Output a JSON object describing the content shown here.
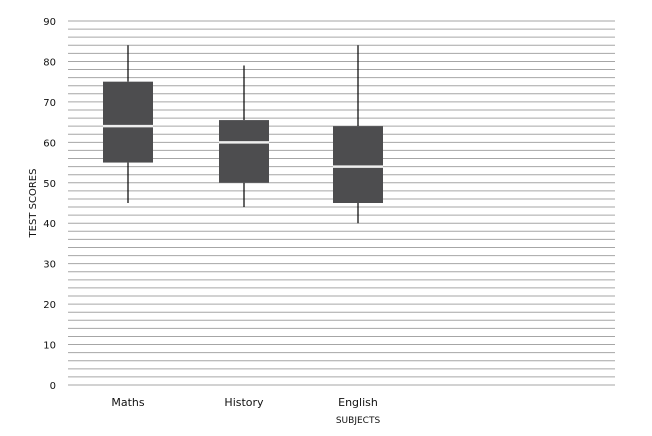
{
  "chart_data": {
    "type": "boxplot",
    "title": "",
    "xlabel": "SUBJECTS",
    "ylabel": "TEST SCORES",
    "ylim": [
      0,
      90
    ],
    "yticks": [
      0,
      10,
      20,
      30,
      40,
      50,
      60,
      70,
      80,
      90
    ],
    "grid": true,
    "grid_step": 2,
    "categories": [
      "Maths",
      "History",
      "English"
    ],
    "boxes": [
      {
        "category": "Maths",
        "min": 45,
        "q1": 55,
        "median": 64,
        "q3": 75,
        "max": 84
      },
      {
        "category": "History",
        "min": 44,
        "q1": 50,
        "median": 60,
        "q3": 65.5,
        "max": 79
      },
      {
        "category": "English",
        "min": 40,
        "q1": 45,
        "median": 54,
        "q3": 64,
        "max": 84
      }
    ],
    "colors": {
      "box": "#4d4d4f",
      "median": "#eeeeee",
      "whisker": "#000000",
      "grid": "#a6a6a6"
    }
  }
}
